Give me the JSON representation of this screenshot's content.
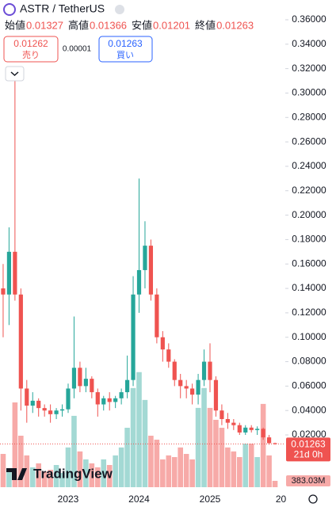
{
  "header": {
    "symbol": "ASTR / TetherUS",
    "ohlc": [
      {
        "label": "始値",
        "value": 0.01327
      },
      {
        "label": "高値",
        "value": 0.01366
      },
      {
        "label": "安値",
        "value": 0.01201
      },
      {
        "label": "終値",
        "value": 0.01263
      }
    ]
  },
  "trade": {
    "sell_price": 0.01262,
    "sell_label": "売り",
    "spread": 1e-05,
    "buy_price": 0.01263,
    "buy_label": "買い"
  },
  "logo": "TradingView",
  "chart_data": {
    "type": "candlestick",
    "categories": [
      null,
      null,
      null,
      null,
      null,
      null,
      null,
      null,
      null,
      null,
      null,
      "2023",
      null,
      null,
      null,
      null,
      null,
      null,
      null,
      null,
      null,
      null,
      null,
      "2024",
      null,
      null,
      null,
      null,
      null,
      null,
      null,
      null,
      null,
      null,
      null,
      "2025",
      null,
      null,
      null,
      null,
      null,
      null,
      null,
      null,
      null,
      null,
      null,
      "20"
    ],
    "open": [
      0.14,
      0.135,
      0.17,
      0.135,
      0.058,
      0.044,
      0.048,
      0.042,
      0.04,
      0.037,
      0.04,
      0.041,
      0.058,
      0.075,
      0.06,
      0.066,
      0.055,
      0.045,
      0.05,
      0.047,
      0.05,
      0.055,
      0.065,
      0.135,
      0.155,
      0.175,
      0.135,
      0.1,
      0.09,
      0.08,
      0.065,
      0.06,
      0.058,
      0.053,
      0.065,
      0.08,
      0.065,
      0.04,
      0.033,
      0.03,
      0.028,
      0.022,
      0.026,
      0.024,
      0.025,
      0.018,
      0.01327,
      null
    ],
    "high": [
      0.16,
      0.19,
      0.31,
      0.14,
      0.065,
      0.055,
      0.05,
      0.045,
      0.045,
      0.042,
      0.045,
      0.062,
      0.117,
      0.08,
      0.075,
      0.068,
      0.058,
      0.052,
      0.055,
      0.052,
      0.058,
      0.085,
      0.15,
      0.23,
      0.195,
      0.18,
      0.14,
      0.105,
      0.095,
      0.082,
      0.07,
      0.065,
      0.062,
      0.07,
      0.09,
      0.095,
      0.068,
      0.045,
      0.038,
      0.033,
      0.03,
      0.028,
      0.028,
      0.027,
      0.026,
      0.02,
      0.01366,
      null
    ],
    "low": [
      0.1,
      0.11,
      0.13,
      0.04,
      0.03,
      0.038,
      0.035,
      0.035,
      0.03,
      0.033,
      0.035,
      0.038,
      0.05,
      0.055,
      0.055,
      0.05,
      0.035,
      0.04,
      0.04,
      0.042,
      0.045,
      0.05,
      0.06,
      0.12,
      0.14,
      0.13,
      0.095,
      0.08,
      0.075,
      0.06,
      0.05,
      0.05,
      0.045,
      0.045,
      0.06,
      0.055,
      0.035,
      0.028,
      0.025,
      0.024,
      0.02,
      0.02,
      0.022,
      0.02,
      0.016,
      0.012,
      0.01201,
      null
    ],
    "close": [
      0.135,
      0.17,
      0.135,
      0.058,
      0.044,
      0.048,
      0.042,
      0.04,
      0.037,
      0.04,
      0.041,
      0.058,
      0.075,
      0.06,
      0.066,
      0.055,
      0.045,
      0.05,
      0.047,
      0.05,
      0.055,
      0.065,
      0.135,
      0.155,
      0.175,
      0.135,
      0.1,
      0.09,
      0.08,
      0.065,
      0.06,
      0.058,
      0.053,
      0.065,
      0.08,
      0.065,
      0.04,
      0.033,
      0.03,
      0.028,
      0.022,
      0.026,
      0.024,
      0.025,
      0.018,
      0.01327,
      0.01263,
      null
    ],
    "volume": [
      2010,
      960,
      5120,
      3110,
      1920,
      1200,
      1440,
      960,
      1050,
      1340,
      860,
      2400,
      4310,
      2160,
      1680,
      1440,
      1200,
      1680,
      1340,
      1920,
      2400,
      3590,
      5990,
      6950,
      5270,
      3110,
      2870,
      1680,
      1920,
      1820,
      2400,
      2010,
      1680,
      4790,
      5990,
      4790,
      4070,
      3590,
      2400,
      2160,
      1820,
      2630,
      2630,
      1820,
      5030,
      1920,
      383.03,
      null
    ],
    "vol_ylim": [
      0,
      10000
    ],
    "last_price": 0.01263,
    "countdown": "21d 0h",
    "last_volume": {
      "value": 383.03,
      "label": "383.03M"
    },
    "up_color": "#26a69a",
    "down_color": "#ef5350",
    "up_volume_color": "#a3d9d4",
    "down_volume_color": "#f7aaa8",
    "ylim": [
      -0.0228,
      0.3762
    ],
    "yticks": [
      {
        "value": 0.02,
        "label": "0.02000"
      },
      {
        "value": 0.04,
        "label": "0.04000"
      },
      {
        "value": 0.06,
        "label": "0.06000"
      },
      {
        "value": 0.08,
        "label": "0.08000"
      },
      {
        "value": 0.1,
        "label": "0.10000"
      },
      {
        "value": 0.12,
        "label": "0.12000"
      },
      {
        "value": 0.14,
        "label": "0.14000"
      },
      {
        "value": 0.16,
        "label": "0.16000"
      },
      {
        "value": 0.18,
        "label": "0.18000"
      },
      {
        "value": 0.2,
        "label": "0.20000"
      },
      {
        "value": 0.22,
        "label": "0.22000"
      },
      {
        "value": 0.24,
        "label": "0.24000"
      },
      {
        "value": 0.26,
        "label": "0.26000"
      },
      {
        "value": 0.28,
        "label": "0.28000"
      },
      {
        "value": 0.3,
        "label": "0.30000"
      },
      {
        "value": 0.32,
        "label": "0.32000"
      },
      {
        "value": 0.34,
        "label": "0.34000"
      },
      {
        "value": 0.36,
        "label": "0.36000"
      }
    ]
  }
}
